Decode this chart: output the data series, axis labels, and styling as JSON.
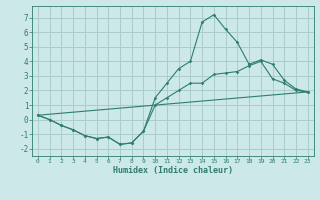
{
  "xlabel": "Humidex (Indice chaleur)",
  "bg_color": "#cce8e8",
  "grid_color": "#aacccc",
  "line_color": "#2e7d6e",
  "xlim": [
    -0.5,
    23.5
  ],
  "ylim": [
    -2.5,
    7.8
  ],
  "xticks": [
    0,
    1,
    2,
    3,
    4,
    5,
    6,
    7,
    8,
    9,
    10,
    11,
    12,
    13,
    14,
    15,
    16,
    17,
    18,
    19,
    20,
    21,
    22,
    23
  ],
  "yticks": [
    -2,
    -1,
    0,
    1,
    2,
    3,
    4,
    5,
    6,
    7
  ],
  "line1_x": [
    0,
    1,
    2,
    3,
    4,
    5,
    6,
    7,
    8,
    9,
    10,
    11,
    12,
    13,
    14,
    15,
    16,
    17,
    18,
    19,
    20,
    21,
    22,
    23
  ],
  "line1_y": [
    0.3,
    0.0,
    -0.4,
    -0.7,
    -1.1,
    -1.3,
    -1.2,
    -1.7,
    -1.6,
    -0.8,
    1.0,
    1.5,
    2.0,
    2.5,
    2.5,
    3.1,
    3.2,
    3.3,
    3.7,
    4.0,
    2.8,
    2.5,
    2.0,
    1.9
  ],
  "line2_x": [
    0,
    1,
    2,
    3,
    4,
    5,
    6,
    7,
    8,
    9,
    10,
    11,
    12,
    13,
    14,
    15,
    16,
    17,
    18,
    19,
    20,
    21,
    22,
    23
  ],
  "line2_y": [
    0.3,
    0.0,
    -0.4,
    -0.7,
    -1.1,
    -1.3,
    -1.2,
    -1.7,
    -1.6,
    -0.8,
    1.5,
    2.5,
    3.5,
    4.0,
    6.7,
    7.2,
    6.2,
    5.3,
    3.8,
    4.1,
    3.8,
    2.7,
    2.1,
    1.9
  ],
  "line3_x": [
    0,
    23
  ],
  "line3_y": [
    0.3,
    1.9
  ]
}
